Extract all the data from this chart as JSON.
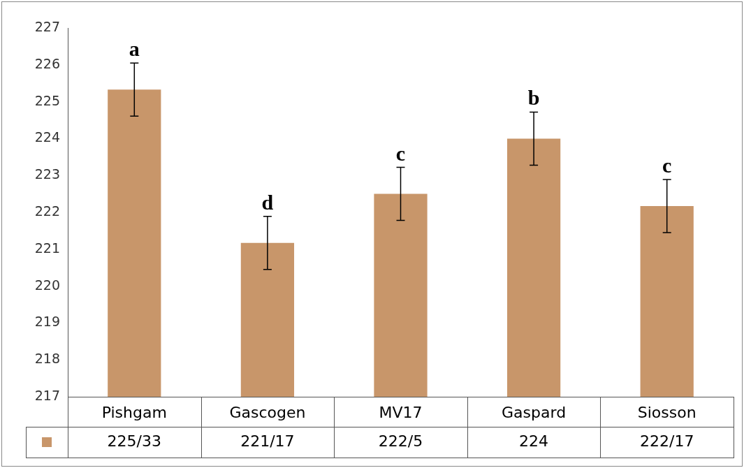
{
  "chart_data": {
    "type": "bar",
    "categories": [
      "Pishgam",
      "Gascogen",
      "MV17",
      "Gaspard",
      "Siosson"
    ],
    "values": [
      225.33,
      221.17,
      222.5,
      224,
      222.17
    ],
    "value_labels": [
      "225/33",
      "221/17",
      "222/5",
      "224",
      "222/17"
    ],
    "errors": [
      0.72,
      0.72,
      0.72,
      0.72,
      0.72
    ],
    "color": "#c8966a",
    "ylim": [
      217,
      227
    ],
    "yticks": [
      217,
      218,
      219,
      220,
      221,
      222,
      223,
      224,
      225,
      226,
      227
    ],
    "grid": false,
    "legend": false,
    "annotations": [
      "a",
      "d",
      "c",
      "b",
      "c"
    ]
  }
}
